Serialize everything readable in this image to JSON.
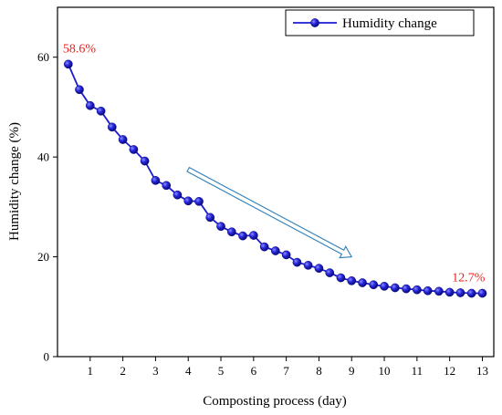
{
  "chart_data": {
    "type": "line",
    "xlabel": "Composting process (day)",
    "ylabel": "Humidity change (%)",
    "xlim": [
      0,
      13.35
    ],
    "ylim": [
      0,
      70
    ],
    "xticks": [
      "1",
      "2",
      "3",
      "4",
      "5",
      "6",
      "7",
      "8",
      "9",
      "10",
      "11",
      "12",
      "13"
    ],
    "yticks": [
      "0",
      "20",
      "40",
      "60"
    ],
    "grid": false,
    "legend_position": "top-right",
    "series": [
      {
        "name": "Humidity change",
        "color": "#1c1cd0",
        "marker": "sphere",
        "x": [
          0.33,
          0.67,
          1.0,
          1.33,
          1.67,
          2.0,
          2.33,
          2.67,
          3.0,
          3.33,
          3.67,
          4.0,
          4.33,
          4.67,
          5.0,
          5.33,
          5.67,
          6.0,
          6.33,
          6.67,
          7.0,
          7.33,
          7.67,
          8.0,
          8.33,
          8.67,
          9.0,
          9.33,
          9.67,
          10.0,
          10.33,
          10.67,
          11.0,
          11.33,
          11.67,
          12.0,
          12.33,
          12.67,
          13.0
        ],
        "y": [
          58.6,
          53.5,
          50.3,
          49.2,
          46.0,
          43.5,
          41.5,
          39.2,
          35.3,
          34.3,
          32.4,
          31.2,
          31.1,
          27.9,
          26.1,
          25.0,
          24.2,
          24.3,
          22.0,
          21.2,
          20.4,
          18.9,
          18.3,
          17.7,
          16.8,
          15.8,
          15.2,
          14.8,
          14.4,
          14.1,
          13.8,
          13.6,
          13.4,
          13.2,
          13.1,
          12.9,
          12.8,
          12.7,
          12.7
        ]
      }
    ],
    "annotations": [
      {
        "text": "58.6%",
        "x": 0.33,
        "y": 58.6,
        "color": "#e8231f"
      },
      {
        "text": "12.7%",
        "x": 13.0,
        "y": 12.7,
        "color": "#e8231f"
      }
    ],
    "trend_arrow": {
      "from": [
        4.0,
        37.5
      ],
      "to": [
        9.0,
        20.0
      ],
      "color": "#2f7fb8"
    }
  }
}
